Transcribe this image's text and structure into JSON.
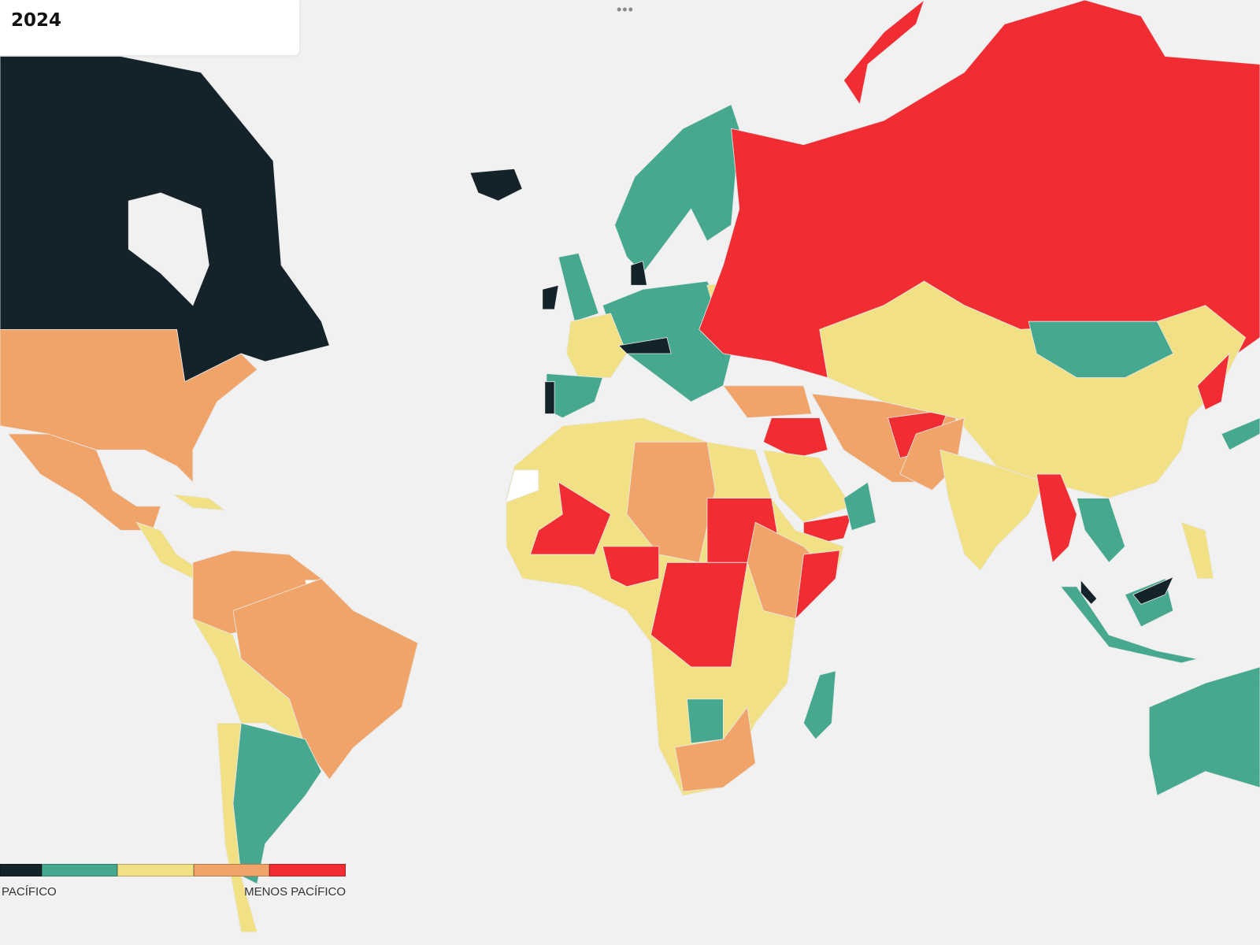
{
  "header": {
    "year": "2024",
    "more_menu_icon": "ellipsis-icon"
  },
  "legend": {
    "low_label": "PACÍFICO",
    "high_label": "MENOS PACÍFICO",
    "colors": [
      "#14232a",
      "#46a98f",
      "#f2e085",
      "#f0a46a",
      "#f22c33"
    ]
  },
  "map": {
    "background": "#f1f1f1",
    "no_data_color": "#ffffff"
  }
}
